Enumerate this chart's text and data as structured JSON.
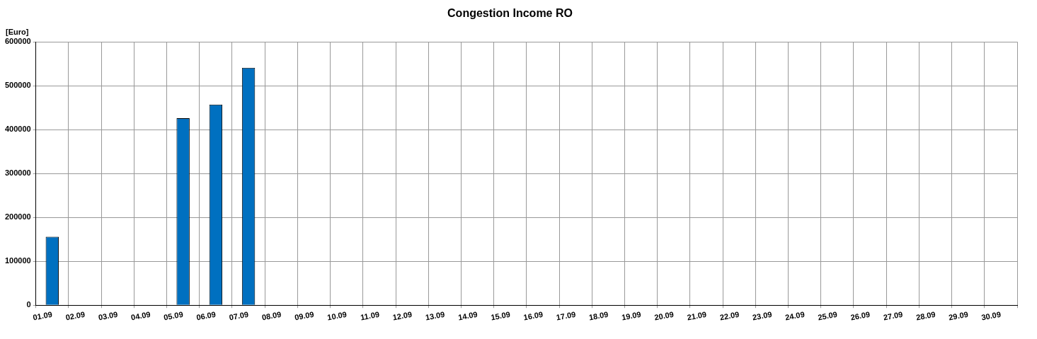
{
  "chart_data": {
    "type": "bar",
    "title": "Congestion Income RO",
    "ylabel": "[Euro]",
    "categories": [
      "01.09",
      "02.09",
      "03.09",
      "04.09",
      "05.09",
      "06.09",
      "07.09",
      "08.09",
      "09.09",
      "10.09",
      "11.09",
      "12.09",
      "13.09",
      "14.09",
      "15.09",
      "16.09",
      "17.09",
      "18.09",
      "19.09",
      "20.09",
      "21.09",
      "22.09",
      "23.09",
      "24.09",
      "25.09",
      "26.09",
      "27.09",
      "28.09",
      "29.09",
      "30.09"
    ],
    "values": [
      156000,
      null,
      null,
      null,
      426000,
      457000,
      541000,
      null,
      null,
      null,
      null,
      null,
      null,
      null,
      null,
      null,
      null,
      null,
      null,
      null,
      null,
      null,
      null,
      null,
      null,
      null,
      null,
      null,
      null,
      null
    ],
    "color": "#0070c0",
    "ylim": [
      0,
      600000
    ],
    "yticks": [
      0,
      100000,
      200000,
      300000,
      400000,
      500000,
      600000
    ],
    "grid": true,
    "legend": false
  }
}
